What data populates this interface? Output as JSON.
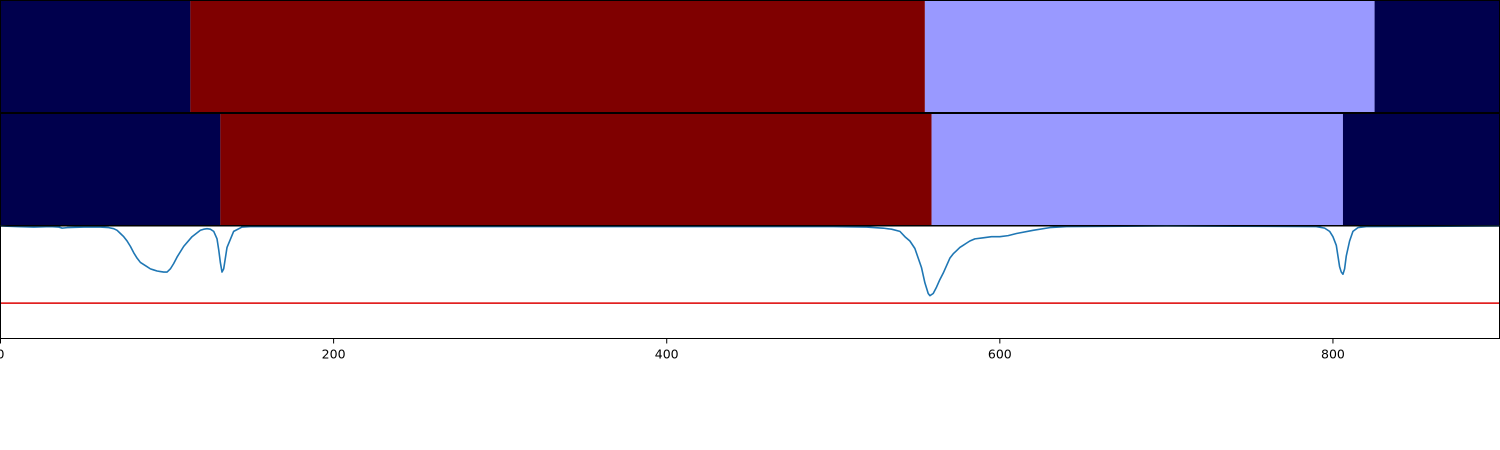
{
  "chart_data": [
    {
      "type": "segment-bar",
      "description_scope": "ground-truth segmentation track (top)",
      "xlim": [
        0,
        900
      ],
      "segments": [
        {
          "start": 0,
          "end": 114,
          "color": "#00004d"
        },
        {
          "start": 114,
          "end": 555,
          "color": "#7f0000"
        },
        {
          "start": 555,
          "end": 825,
          "color": "#9999ff"
        },
        {
          "start": 825,
          "end": 900,
          "color": "#00004d"
        }
      ]
    },
    {
      "type": "segment-bar",
      "description_scope": "predicted segmentation track (middle)",
      "xlim": [
        0,
        900
      ],
      "segments": [
        {
          "start": 0,
          "end": 132,
          "color": "#00004d"
        },
        {
          "start": 132,
          "end": 559,
          "color": "#7f0000"
        },
        {
          "start": 559,
          "end": 806,
          "color": "#9999ff"
        },
        {
          "start": 806,
          "end": 900,
          "color": "#00004d"
        }
      ]
    },
    {
      "type": "line",
      "xlim": [
        0,
        900
      ],
      "ylim": [
        -0.05,
        1.0
      ],
      "threshold": 0.28,
      "threshold_color": "#dd0000",
      "line_color": "#1f77b4",
      "x": [
        0,
        10,
        20,
        30,
        35,
        37,
        40,
        50,
        60,
        65,
        68,
        70,
        72,
        74,
        76,
        78,
        80,
        82,
        84,
        86,
        88,
        90,
        92,
        94,
        96,
        98,
        100,
        102,
        104,
        106,
        110,
        115,
        120,
        122,
        124,
        126,
        128,
        130,
        131,
        132,
        133,
        134,
        136,
        140,
        145,
        150,
        200,
        300,
        400,
        500,
        520,
        530,
        535,
        540,
        543,
        546,
        549,
        551,
        553,
        555,
        556,
        557,
        558,
        560,
        562,
        564,
        566,
        568,
        570,
        572,
        574,
        576,
        578,
        580,
        582,
        585,
        590,
        595,
        600,
        605,
        610,
        620,
        630,
        640,
        700,
        790,
        795,
        798,
        800,
        802,
        803,
        804,
        805,
        806,
        807,
        808,
        810,
        812,
        815,
        820,
        900
      ],
      "y": [
        1.0,
        0.995,
        0.99,
        0.995,
        0.99,
        0.98,
        0.985,
        0.99,
        0.99,
        0.985,
        0.975,
        0.96,
        0.93,
        0.9,
        0.86,
        0.81,
        0.75,
        0.7,
        0.66,
        0.64,
        0.62,
        0.6,
        0.59,
        0.58,
        0.575,
        0.57,
        0.57,
        0.6,
        0.65,
        0.71,
        0.81,
        0.9,
        0.96,
        0.97,
        0.975,
        0.97,
        0.95,
        0.88,
        0.78,
        0.66,
        0.57,
        0.6,
        0.8,
        0.95,
        0.99,
        0.995,
        0.995,
        0.995,
        0.995,
        0.995,
        0.99,
        0.98,
        0.97,
        0.95,
        0.9,
        0.86,
        0.79,
        0.7,
        0.61,
        0.47,
        0.42,
        0.37,
        0.35,
        0.37,
        0.43,
        0.5,
        0.56,
        0.63,
        0.7,
        0.74,
        0.77,
        0.8,
        0.82,
        0.84,
        0.86,
        0.88,
        0.89,
        0.9,
        0.9,
        0.91,
        0.93,
        0.96,
        0.985,
        0.995,
        1.0,
        0.995,
        0.98,
        0.95,
        0.9,
        0.82,
        0.72,
        0.62,
        0.57,
        0.55,
        0.6,
        0.72,
        0.86,
        0.95,
        0.985,
        0.995,
        1.0
      ]
    }
  ],
  "axis": {
    "xticks": [
      {
        "value": 0,
        "label": "0"
      },
      {
        "value": 200,
        "label": "200"
      },
      {
        "value": 400,
        "label": "400"
      },
      {
        "value": 600,
        "label": "600"
      },
      {
        "value": 800,
        "label": "800"
      }
    ]
  }
}
